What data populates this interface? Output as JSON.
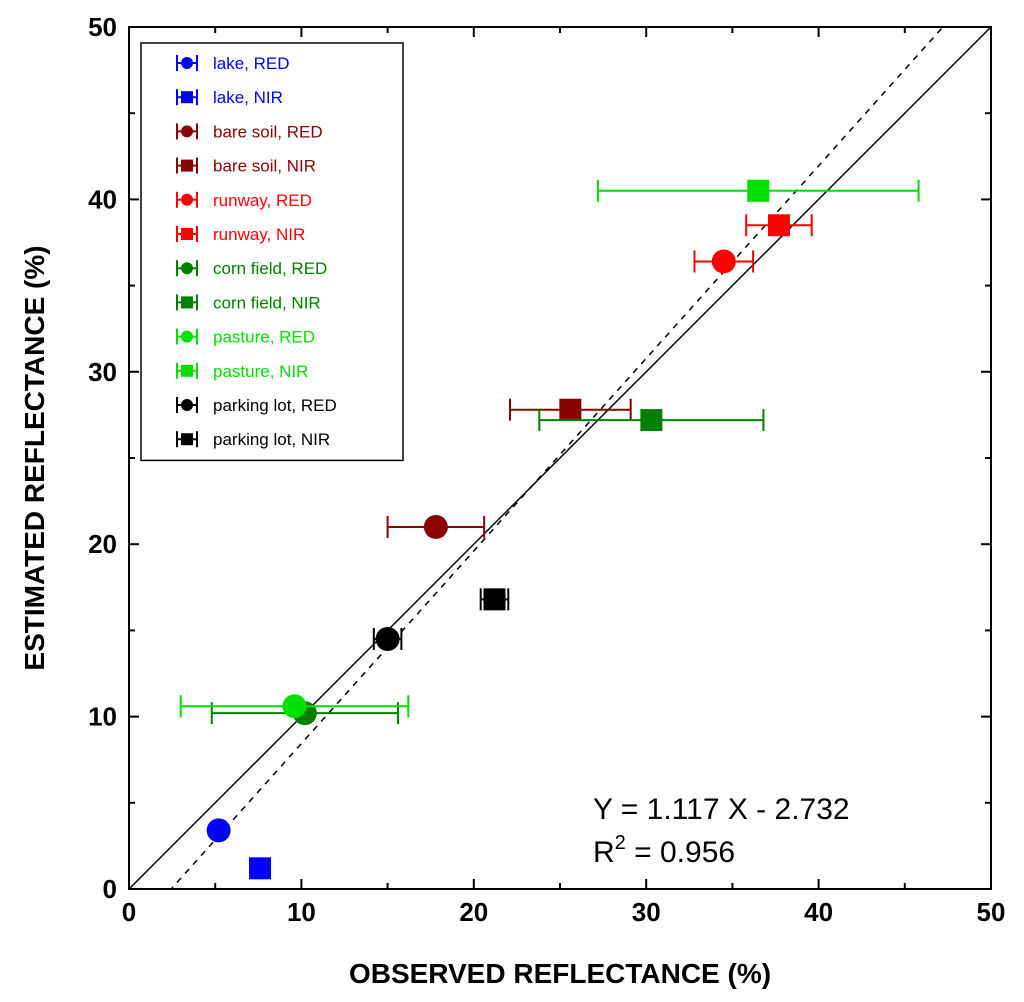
{
  "chart_data": {
    "type": "scatter",
    "xlabel": "OBSERVED REFLECTANCE (%)",
    "ylabel": "ESTIMATED REFLECTANCE (%)",
    "xlim": [
      0,
      50
    ],
    "ylim": [
      0,
      50
    ],
    "xticks": [
      "0",
      "10",
      "20",
      "30",
      "40",
      "50"
    ],
    "yticks": [
      "0",
      "10",
      "20",
      "30",
      "40",
      "50"
    ],
    "grid": false,
    "legend_position": "top-left",
    "series": [
      {
        "name": "lake, RED",
        "color": "#0000FF",
        "marker": "circle",
        "points": [
          {
            "x": 5.2,
            "y": 3.4,
            "xerr": 0
          }
        ]
      },
      {
        "name": "lake, NIR",
        "color": "#0000FF",
        "marker": "square",
        "points": [
          {
            "x": 7.6,
            "y": 1.2,
            "xerr": 0
          }
        ]
      },
      {
        "name": "bare soil, RED",
        "color": "#8B0000",
        "marker": "circle",
        "points": [
          {
            "x": 17.8,
            "y": 21.0,
            "xerr": 2.8
          }
        ]
      },
      {
        "name": "bare soil, NIR",
        "color": "#8B0000",
        "marker": "square",
        "points": [
          {
            "x": 25.6,
            "y": 27.8,
            "xerr": 3.5
          }
        ]
      },
      {
        "name": "runway, RED",
        "color": "#FF0000",
        "marker": "circle",
        "points": [
          {
            "x": 34.5,
            "y": 36.4,
            "xerr": 1.7
          }
        ]
      },
      {
        "name": "runway, NIR",
        "color": "#FF0000",
        "marker": "square",
        "points": [
          {
            "x": 37.7,
            "y": 38.5,
            "xerr": 1.9
          }
        ]
      },
      {
        "name": "corn field, RED",
        "color": "#008000",
        "marker": "circle",
        "points": [
          {
            "x": 10.2,
            "y": 10.2,
            "xerr": 5.4
          }
        ]
      },
      {
        "name": "corn field, NIR",
        "color": "#008000",
        "marker": "square",
        "points": [
          {
            "x": 30.3,
            "y": 27.2,
            "xerr": 6.5
          }
        ]
      },
      {
        "name": "pasture, RED",
        "color": "#00E000",
        "marker": "circle",
        "points": [
          {
            "x": 9.6,
            "y": 10.6,
            "xerr": 6.6
          }
        ]
      },
      {
        "name": "pasture, NIR",
        "color": "#00E000",
        "marker": "square",
        "points": [
          {
            "x": 36.5,
            "y": 40.5,
            "xerr": 9.3
          }
        ]
      },
      {
        "name": "parking lot, RED",
        "color": "#000000",
        "marker": "circle",
        "points": [
          {
            "x": 15.0,
            "y": 14.5,
            "xerr": 0.8
          }
        ]
      },
      {
        "name": "parking lot, NIR",
        "color": "#000000",
        "marker": "square",
        "points": [
          {
            "x": 21.2,
            "y": 16.8,
            "xerr": 0.8
          }
        ]
      }
    ],
    "reference_lines": [
      {
        "kind": "identity",
        "style": "solid",
        "slope": 1,
        "intercept": 0
      },
      {
        "kind": "fit",
        "style": "dashed",
        "slope": 1.117,
        "intercept": -2.732
      }
    ],
    "annotation": {
      "equation": "Y = 1.117 X - 2.732",
      "r2_prefix": "R",
      "r2_sup": "2",
      "r2_suffix": " = 0.956"
    }
  }
}
